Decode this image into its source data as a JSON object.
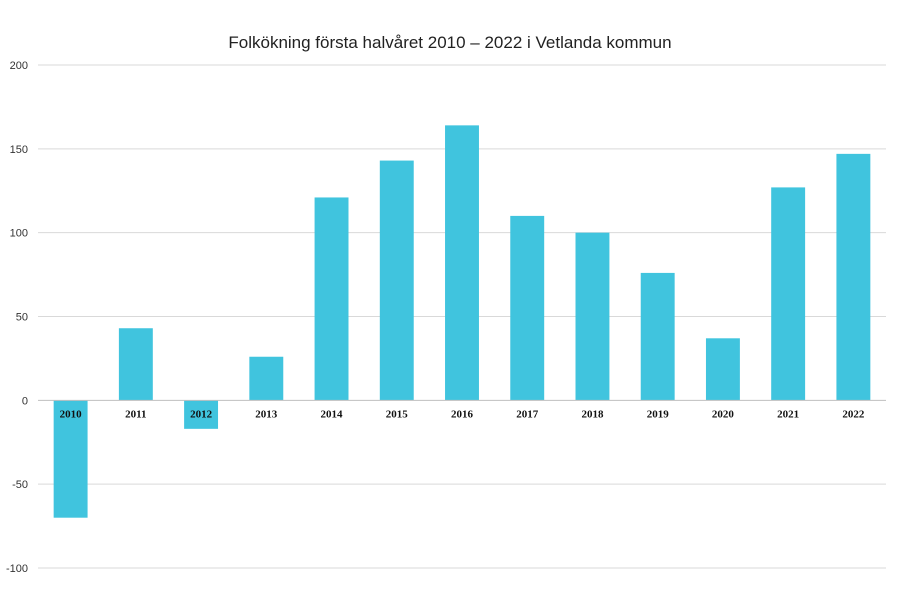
{
  "chart_data": {
    "type": "bar",
    "title": "Folkökning första halvåret 2010 – 2022 i Vetlanda kommun",
    "categories": [
      "2010",
      "2011",
      "2012",
      "2013",
      "2014",
      "2015",
      "2016",
      "2017",
      "2018",
      "2019",
      "2020",
      "2021",
      "2022"
    ],
    "values": [
      -70,
      43,
      -17,
      26,
      121,
      143,
      164,
      110,
      100,
      76,
      37,
      127,
      147
    ],
    "yticks": [
      200,
      150,
      100,
      50,
      0,
      -50,
      -100
    ],
    "ylim": [
      -100,
      200
    ],
    "grid": true,
    "legend": "none",
    "bar_color": "#40c4de"
  }
}
